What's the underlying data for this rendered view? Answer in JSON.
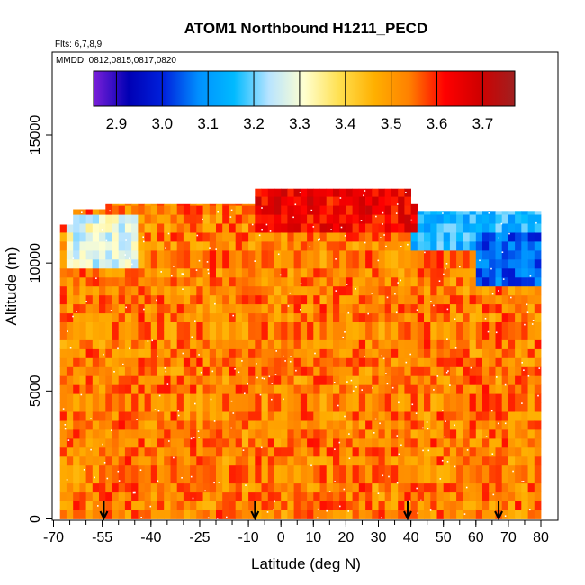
{
  "chart_data": {
    "type": "heatmap",
    "title": "ATOM1 Northbound H1211_PECD",
    "flights_note": "Flts: 6,7,8,9",
    "dates_note": "MMDD: 0812,0815,0817,0820",
    "xlabel": "Latitude (deg N)",
    "ylabel": "Altitude (m)",
    "xlim": [
      -70,
      85
    ],
    "ylim": [
      0,
      18000
    ],
    "x_ticks": [
      -70,
      -55,
      -40,
      -25,
      -10,
      0,
      10,
      20,
      30,
      40,
      50,
      60,
      70,
      80
    ],
    "x_tick_labels": [
      "-70",
      "-55",
      "-40",
      "-25",
      "-10",
      "0",
      "10",
      "20",
      "30",
      "40",
      "50",
      "60",
      "70",
      "80"
    ],
    "y_ticks": [
      0,
      5000,
      10000,
      15000
    ],
    "y_tick_labels": [
      "0",
      "5000",
      "10000",
      "15000"
    ],
    "colorbar": {
      "min": 2.85,
      "max": 3.77,
      "ticks": [
        2.9,
        3.0,
        3.1,
        3.2,
        3.3,
        3.4,
        3.5,
        3.6,
        3.7
      ],
      "tick_labels": [
        "2.9",
        "3.0",
        "3.1",
        "3.2",
        "3.3",
        "3.4",
        "3.5",
        "3.6",
        "3.7"
      ],
      "colors": [
        "#7a1fd8",
        "#0000b4",
        "#0022dd",
        "#0090ff",
        "#00baff",
        "#b8e4ff",
        "#ffffd0",
        "#ffe050",
        "#ffb000",
        "#ff8000",
        "#ff0000",
        "#d00000",
        "#a02020"
      ]
    },
    "profile_latitudes": [
      -54.5,
      -8,
      39,
      67
    ],
    "data_extent": {
      "lat_range": [
        -68,
        80
      ],
      "alt_range": [
        0,
        12900
      ]
    },
    "field_description": "mostly 3.5-3.6 throughout troposphere; low values 3.0-3.3 near 10-12 km at southern edge (-65) and northern latitudes (40-80)",
    "typical_value": 3.53,
    "upper_features": [
      {
        "lat": [
          -66,
          -45
        ],
        "alt": [
          9800,
          11600
        ],
        "value": 3.28
      },
      {
        "lat": [
          40,
          80
        ],
        "alt": [
          10500,
          12000
        ],
        "value": 3.15
      },
      {
        "lat": [
          60,
          80
        ],
        "alt": [
          9000,
          11000
        ],
        "value": 3.05
      },
      {
        "lat": [
          -8,
          40
        ],
        "alt": [
          11000,
          12900
        ],
        "value": 3.64
      }
    ]
  }
}
